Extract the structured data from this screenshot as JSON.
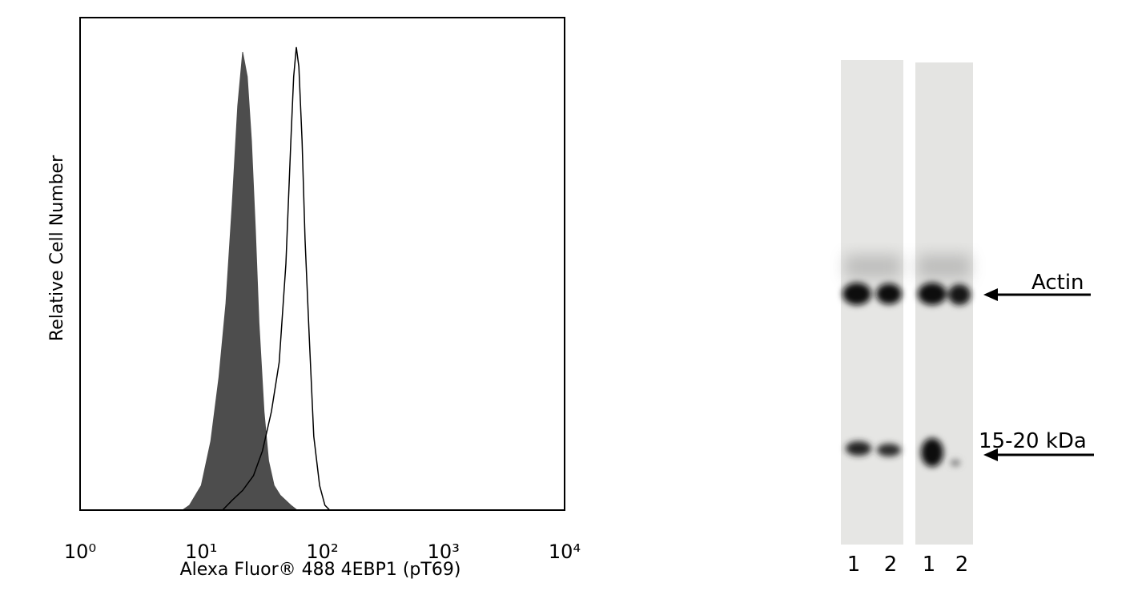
{
  "chart_data": {
    "type": "area",
    "xlabel": "Alexa Fluor® 488 4EBP1 (pT69)",
    "ylabel": "Relative Cell Number",
    "xscale": "log",
    "xlim": [
      1,
      10000
    ],
    "xticks": [
      {
        "value": 1,
        "label": "10⁰"
      },
      {
        "value": 10,
        "label": "10¹"
      },
      {
        "value": 100,
        "label": "10²"
      },
      {
        "value": 1000,
        "label": "10³"
      },
      {
        "value": 10000,
        "label": "10⁴"
      }
    ],
    "ylim": [
      0,
      100
    ],
    "series": [
      {
        "color": "#4d4d4d",
        "filled": true,
        "x": [
          7,
          8,
          10,
          12,
          14,
          16,
          18,
          20,
          22,
          24,
          26,
          28,
          30,
          33,
          36,
          40,
          45,
          55,
          62
        ],
        "values": [
          0,
          1,
          5,
          14,
          27,
          42,
          62,
          82,
          93,
          88,
          75,
          57,
          38,
          20,
          10,
          5,
          3,
          1,
          0
        ]
      },
      {
        "color": "#000000",
        "filled": false,
        "x": [
          15,
          18,
          22,
          27,
          32,
          38,
          44,
          50,
          55,
          58,
          61,
          64,
          68,
          72,
          78,
          85,
          95,
          105,
          115
        ],
        "values": [
          0,
          2,
          4,
          7,
          12,
          20,
          30,
          50,
          75,
          88,
          94,
          90,
          75,
          55,
          35,
          15,
          5,
          1,
          0
        ]
      }
    ]
  },
  "blot": {
    "bands": [
      "Actin",
      "15-20 kDa"
    ],
    "lanes": [
      "1",
      "2",
      "1",
      "2"
    ]
  }
}
